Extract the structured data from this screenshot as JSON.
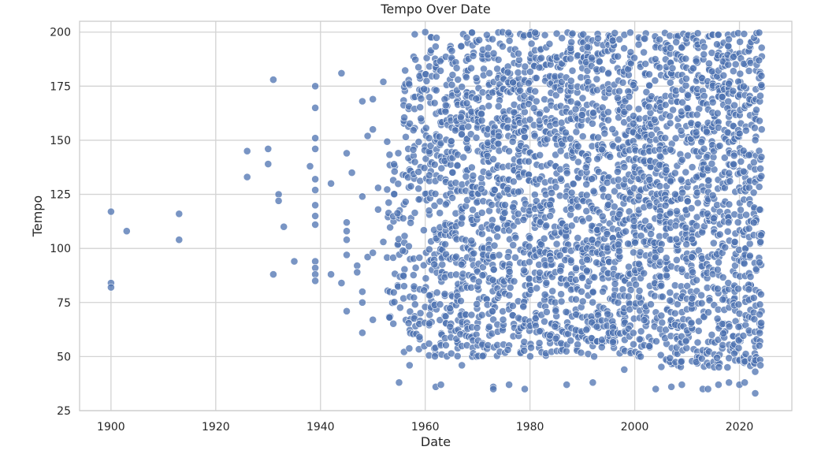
{
  "chart_data": {
    "type": "scatter",
    "title": "Tempo Over Date",
    "xlabel": "Date",
    "ylabel": "Tempo",
    "xlim": [
      1894,
      2030
    ],
    "ylim": [
      25,
      205
    ],
    "x_ticks": [
      "1900",
      "1920",
      "1940",
      "1960",
      "1980",
      "2000",
      "2020"
    ],
    "y_ticks": [
      "25",
      "50",
      "75",
      "100",
      "125",
      "150",
      "175",
      "200"
    ],
    "grid": true,
    "marker_color": "#4c72b0",
    "points": [
      [
        1900,
        117
      ],
      [
        1900,
        84
      ],
      [
        1900,
        82
      ],
      [
        1903,
        108
      ],
      [
        1913,
        116
      ],
      [
        1913,
        104
      ],
      [
        1926,
        145
      ],
      [
        1926,
        133
      ],
      [
        1930,
        146
      ],
      [
        1930,
        139
      ],
      [
        1931,
        178
      ],
      [
        1931,
        88
      ],
      [
        1932,
        125
      ],
      [
        1932,
        122
      ],
      [
        1933,
        110
      ],
      [
        1935,
        94
      ],
      [
        1938,
        138
      ],
      [
        1939,
        175
      ],
      [
        1939,
        165
      ],
      [
        1939,
        151
      ],
      [
        1939,
        146
      ],
      [
        1939,
        132
      ],
      [
        1939,
        127
      ],
      [
        1939,
        120
      ],
      [
        1939,
        115
      ],
      [
        1939,
        111
      ],
      [
        1939,
        94
      ],
      [
        1939,
        91
      ],
      [
        1939,
        88
      ],
      [
        1939,
        85
      ],
      [
        1942,
        130
      ],
      [
        1942,
        88
      ],
      [
        1944,
        181
      ],
      [
        1944,
        84
      ],
      [
        1945,
        144
      ],
      [
        1945,
        112
      ],
      [
        1945,
        108
      ],
      [
        1945,
        104
      ],
      [
        1945,
        97
      ],
      [
        1945,
        71
      ],
      [
        1946,
        135
      ],
      [
        1947,
        92
      ],
      [
        1947,
        89
      ],
      [
        1948,
        168
      ],
      [
        1948,
        124
      ],
      [
        1948,
        80
      ],
      [
        1948,
        75
      ],
      [
        1948,
        61
      ],
      [
        1949,
        152
      ],
      [
        1949,
        96
      ],
      [
        1950,
        169
      ],
      [
        1950,
        155
      ],
      [
        1950,
        67
      ],
      [
        1950,
        98
      ],
      [
        1951,
        128
      ],
      [
        1951,
        118
      ],
      [
        1952,
        177
      ],
      [
        1952,
        103
      ],
      [
        1955,
        38
      ],
      [
        1957,
        46
      ],
      [
        1958,
        199
      ],
      [
        1960,
        200
      ],
      [
        1962,
        36
      ],
      [
        1963,
        37
      ],
      [
        1967,
        46
      ],
      [
        1973,
        36
      ],
      [
        1973,
        35
      ],
      [
        1976,
        37
      ],
      [
        1979,
        35
      ],
      [
        1987,
        37
      ],
      [
        1992,
        38
      ],
      [
        1998,
        44
      ],
      [
        2004,
        35
      ],
      [
        2007,
        36
      ],
      [
        2009,
        37
      ],
      [
        2013,
        35
      ],
      [
        2014,
        35
      ],
      [
        2016,
        37
      ],
      [
        2018,
        38
      ],
      [
        2020,
        37
      ],
      [
        2021,
        38
      ],
      [
        2023,
        33
      ],
      [
        2023,
        43
      ],
      [
        2024,
        46
      ]
    ]
  }
}
